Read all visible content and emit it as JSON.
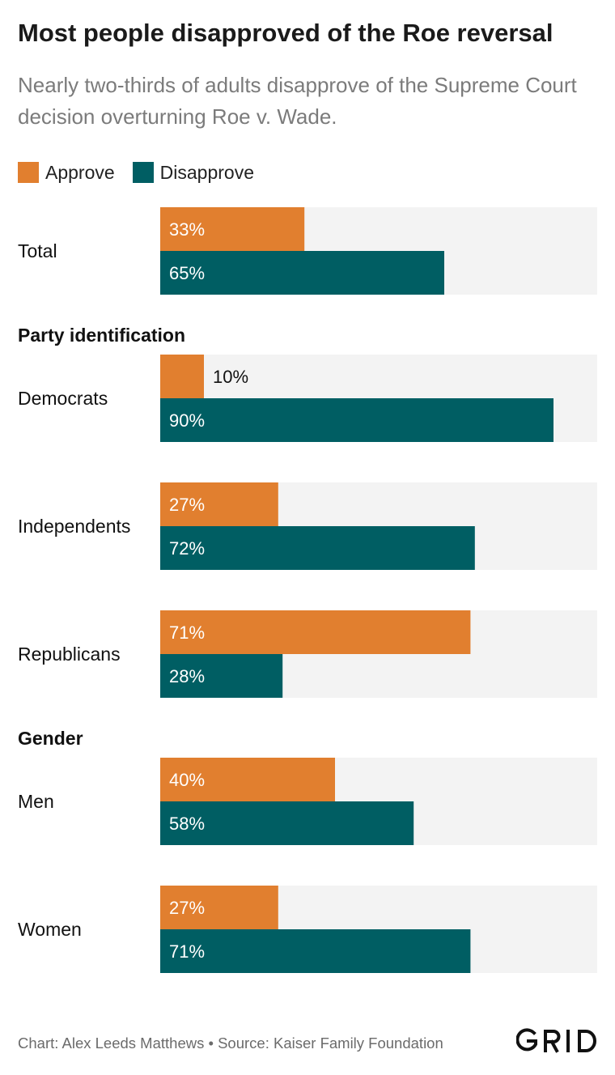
{
  "title": "Most people disapproved of the Roe reversal",
  "subtitle": "Nearly two-thirds of adults disapprove of the Supreme Court decision overturning Roe v. Wade.",
  "footer": "Chart: Alex Leeds Matthews • Source: Kaiser Family Foundation",
  "logo_text": "GRID",
  "colors": {
    "approve": "#e17f2f",
    "disapprove": "#005e63",
    "track": "#f3f3f3"
  },
  "chart_data": {
    "type": "bar",
    "orientation": "horizontal",
    "xlim": [
      0,
      100
    ],
    "value_suffix": "%",
    "legend": [
      {
        "name": "Approve",
        "color": "#e17f2f"
      },
      {
        "name": "Disapprove",
        "color": "#005e63"
      }
    ],
    "groups": [
      {
        "heading": "",
        "categories": [
          {
            "label": "Total",
            "approve": 33,
            "disapprove": 65
          }
        ]
      },
      {
        "heading": "Party identification",
        "categories": [
          {
            "label": "Democrats",
            "approve": 10,
            "disapprove": 90
          },
          {
            "label": "Independents",
            "approve": 27,
            "disapprove": 72
          },
          {
            "label": "Republicans",
            "approve": 71,
            "disapprove": 28
          }
        ]
      },
      {
        "heading": "Gender",
        "categories": [
          {
            "label": "Men",
            "approve": 40,
            "disapprove": 58
          },
          {
            "label": "Women",
            "approve": 27,
            "disapprove": 71
          }
        ]
      }
    ]
  }
}
